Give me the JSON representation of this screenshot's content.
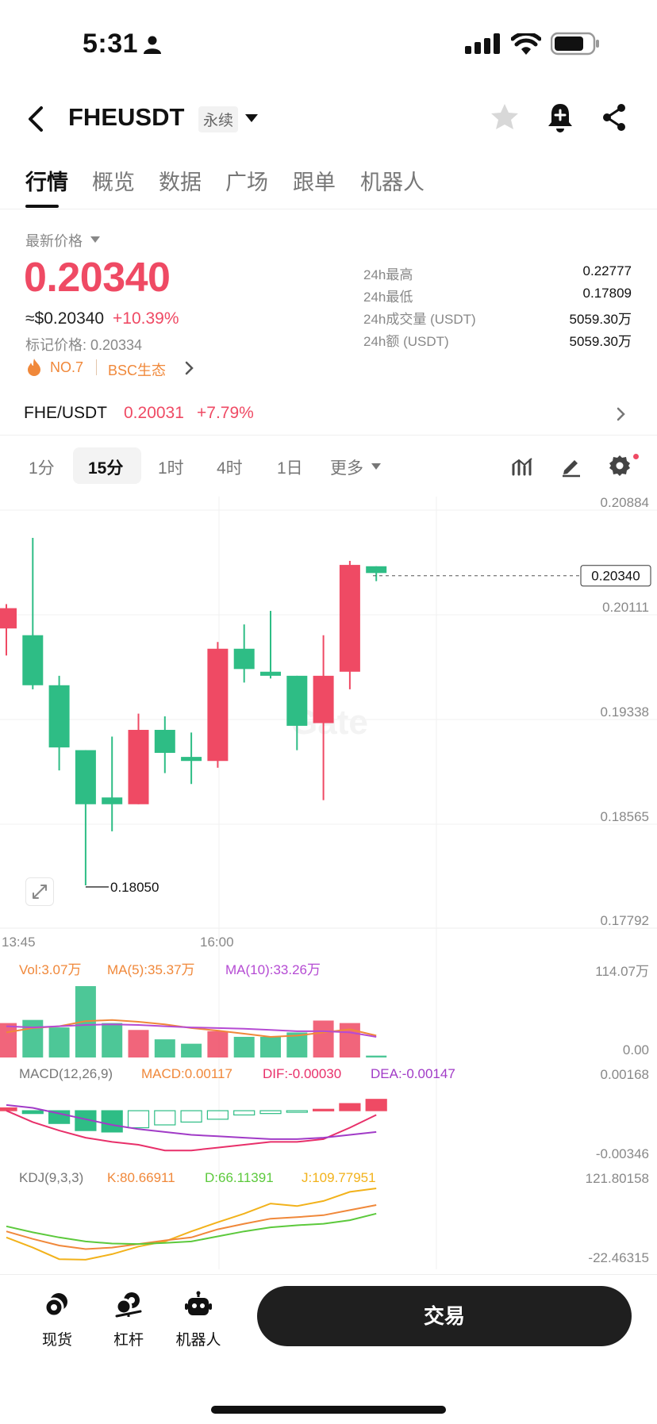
{
  "status_bar": {
    "time": "5:31"
  },
  "header": {
    "pair": "FHEUSDT",
    "contract_type": "永续"
  },
  "tabs": [
    {
      "label": "行情"
    },
    {
      "label": "概览"
    },
    {
      "label": "数据"
    },
    {
      "label": "广场"
    },
    {
      "label": "跟单"
    },
    {
      "label": "机器人"
    }
  ],
  "price": {
    "latest_label": "最新价格",
    "last": "0.20340",
    "usd": "≈$0.20340",
    "change": "+10.39%",
    "mark": "标记价格: 0.20334",
    "rank": "NO.7",
    "ecosystem": "BSC生态"
  },
  "stats": [
    {
      "label": "24h最高",
      "value": "0.22777"
    },
    {
      "label": "24h最低",
      "value": "0.17809"
    },
    {
      "label": "24h成交量 (USDT)",
      "value": "5059.30万"
    },
    {
      "label": "24h额 (USDT)",
      "value": "5059.30万"
    }
  ],
  "spot": {
    "pair": "FHE/USDT",
    "price": "0.20031",
    "change": "+7.79%"
  },
  "intervals": [
    {
      "label": "1分"
    },
    {
      "label": "15分"
    },
    {
      "label": "1时"
    },
    {
      "label": "4时"
    },
    {
      "label": "1日"
    },
    {
      "label": "更多"
    }
  ],
  "chart_data": {
    "type": "candlestick",
    "price_axis": [
      "0.20884",
      "0.20111",
      "0.19338",
      "0.18565",
      "0.17792"
    ],
    "ylim": [
      0.17792,
      0.20884
    ],
    "current_price": "0.20340",
    "low_marker": "0.18050",
    "time_labels": [
      "13:45",
      "16:00"
    ],
    "candles": [
      {
        "o": 0.1995,
        "h": 0.2013,
        "l": 0.1975,
        "c": 0.201
      },
      {
        "o": 0.199,
        "h": 0.2062,
        "l": 0.195,
        "c": 0.1953
      },
      {
        "o": 0.1953,
        "h": 0.196,
        "l": 0.189,
        "c": 0.1907
      },
      {
        "o": 0.1905,
        "h": 0.1905,
        "l": 0.1805,
        "c": 0.1865
      },
      {
        "o": 0.187,
        "h": 0.1915,
        "l": 0.1845,
        "c": 0.1865
      },
      {
        "o": 0.1865,
        "h": 0.1932,
        "l": 0.1865,
        "c": 0.192
      },
      {
        "o": 0.192,
        "h": 0.193,
        "l": 0.1888,
        "c": 0.1903
      },
      {
        "o": 0.19,
        "h": 0.1918,
        "l": 0.188,
        "c": 0.1897
      },
      {
        "o": 0.1897,
        "h": 0.1985,
        "l": 0.1892,
        "c": 0.198
      },
      {
        "o": 0.198,
        "h": 0.1998,
        "l": 0.1955,
        "c": 0.1965
      },
      {
        "o": 0.1963,
        "h": 0.2008,
        "l": 0.1958,
        "c": 0.196
      },
      {
        "o": 0.196,
        "h": 0.196,
        "l": 0.1905,
        "c": 0.1923
      },
      {
        "o": 0.1925,
        "h": 0.199,
        "l": 0.1868,
        "c": 0.196
      },
      {
        "o": 0.1963,
        "h": 0.2045,
        "l": 0.195,
        "c": 0.2042
      },
      {
        "o": 0.2041,
        "h": 0.2041,
        "l": 0.203,
        "c": 0.2036
      }
    ],
    "volume": {
      "legend": {
        "vol": "Vol:3.07万",
        "ma5": "MA(5):35.37万",
        "ma10": "MA(10):33.26万"
      },
      "axis": [
        "114.07万",
        "0.00"
      ],
      "values_wan": [
        55,
        60,
        48,
        114,
        55,
        44,
        29,
        22,
        42,
        33,
        33,
        40,
        59,
        55,
        3
      ],
      "ma5": [
        40,
        47,
        50,
        58,
        60,
        57,
        53,
        47,
        43,
        38,
        33,
        35,
        40,
        45,
        35
      ],
      "ma10": [
        50,
        48,
        50,
        52,
        53,
        52,
        50,
        48,
        47,
        46,
        44,
        42,
        42,
        40,
        33
      ]
    },
    "macd": {
      "legend": {
        "name": "MACD(12,26,9)",
        "macd": "MACD:0.00117",
        "dif": "DIF:-0.00030",
        "dea": "DEA:-0.00147"
      },
      "axis": [
        "0.00168",
        "-0.00346"
      ],
      "hist": [
        0.0002,
        -0.0002,
        -0.0009,
        -0.0014,
        -0.0015,
        -0.0012,
        -0.001,
        -0.0008,
        -0.0006,
        -0.0003,
        -0.0002,
        -0.0001,
        0.0001,
        0.0005,
        0.0008
      ],
      "dif": [
        0.0,
        -0.0008,
        -0.0014,
        -0.0019,
        -0.0022,
        -0.0024,
        -0.0028,
        -0.0028,
        -0.0026,
        -0.0024,
        -0.0022,
        -0.0022,
        -0.002,
        -0.0012,
        -0.0003
      ],
      "dea": [
        0.0004,
        0.0002,
        -0.0002,
        -0.0006,
        -0.001,
        -0.0013,
        -0.0015,
        -0.0017,
        -0.0018,
        -0.0019,
        -0.002,
        -0.002,
        -0.0019,
        -0.0017,
        -0.0015
      ]
    },
    "kdj": {
      "legend": {
        "name": "KDJ(9,3,3)",
        "k": "K:80.66911",
        "d": "D:66.11391",
        "j": "J:109.77951"
      },
      "axis": [
        "121.80158",
        "-22.46315"
      ],
      "k": [
        40,
        25,
        12,
        5,
        8,
        15,
        22,
        28,
        44,
        55,
        65,
        68,
        72,
        82,
        92
      ],
      "d": [
        50,
        38,
        28,
        20,
        16,
        15,
        17,
        20,
        30,
        40,
        48,
        52,
        55,
        62,
        75
      ],
      "j": [
        28,
        8,
        -15,
        -16,
        -5,
        10,
        20,
        40,
        58,
        75,
        95,
        90,
        100,
        118,
        125
      ]
    }
  },
  "bottom_nav": [
    {
      "label": "现货"
    },
    {
      "label": "杠杆"
    },
    {
      "label": "机器人"
    }
  ],
  "trade_button": "交易",
  "colors": {
    "up": "#ef4a64",
    "down": "#2ebd85",
    "ma5": "#f0883a",
    "ma10": "#b54bd3",
    "dif": "#e8306a",
    "dea": "#a13bc7",
    "kdj_k": "#f0883a",
    "kdj_d": "#5cc93c",
    "kdj_j": "#f2b21b"
  }
}
